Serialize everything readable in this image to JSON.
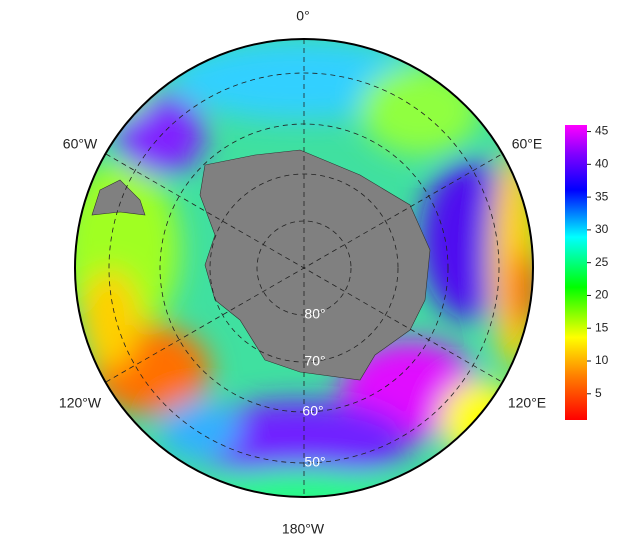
{
  "map": {
    "longitude_labels": [
      "0°",
      "60°E",
      "120°E",
      "180°W",
      "120°W",
      "60°W"
    ],
    "latitude_labels": [
      "80°",
      "70°",
      "60°",
      "50°"
    ],
    "colorbar": {
      "lim": [
        1,
        46
      ],
      "ticks": [
        5,
        10,
        15,
        20,
        25,
        30,
        35,
        40,
        45
      ]
    }
  }
}
